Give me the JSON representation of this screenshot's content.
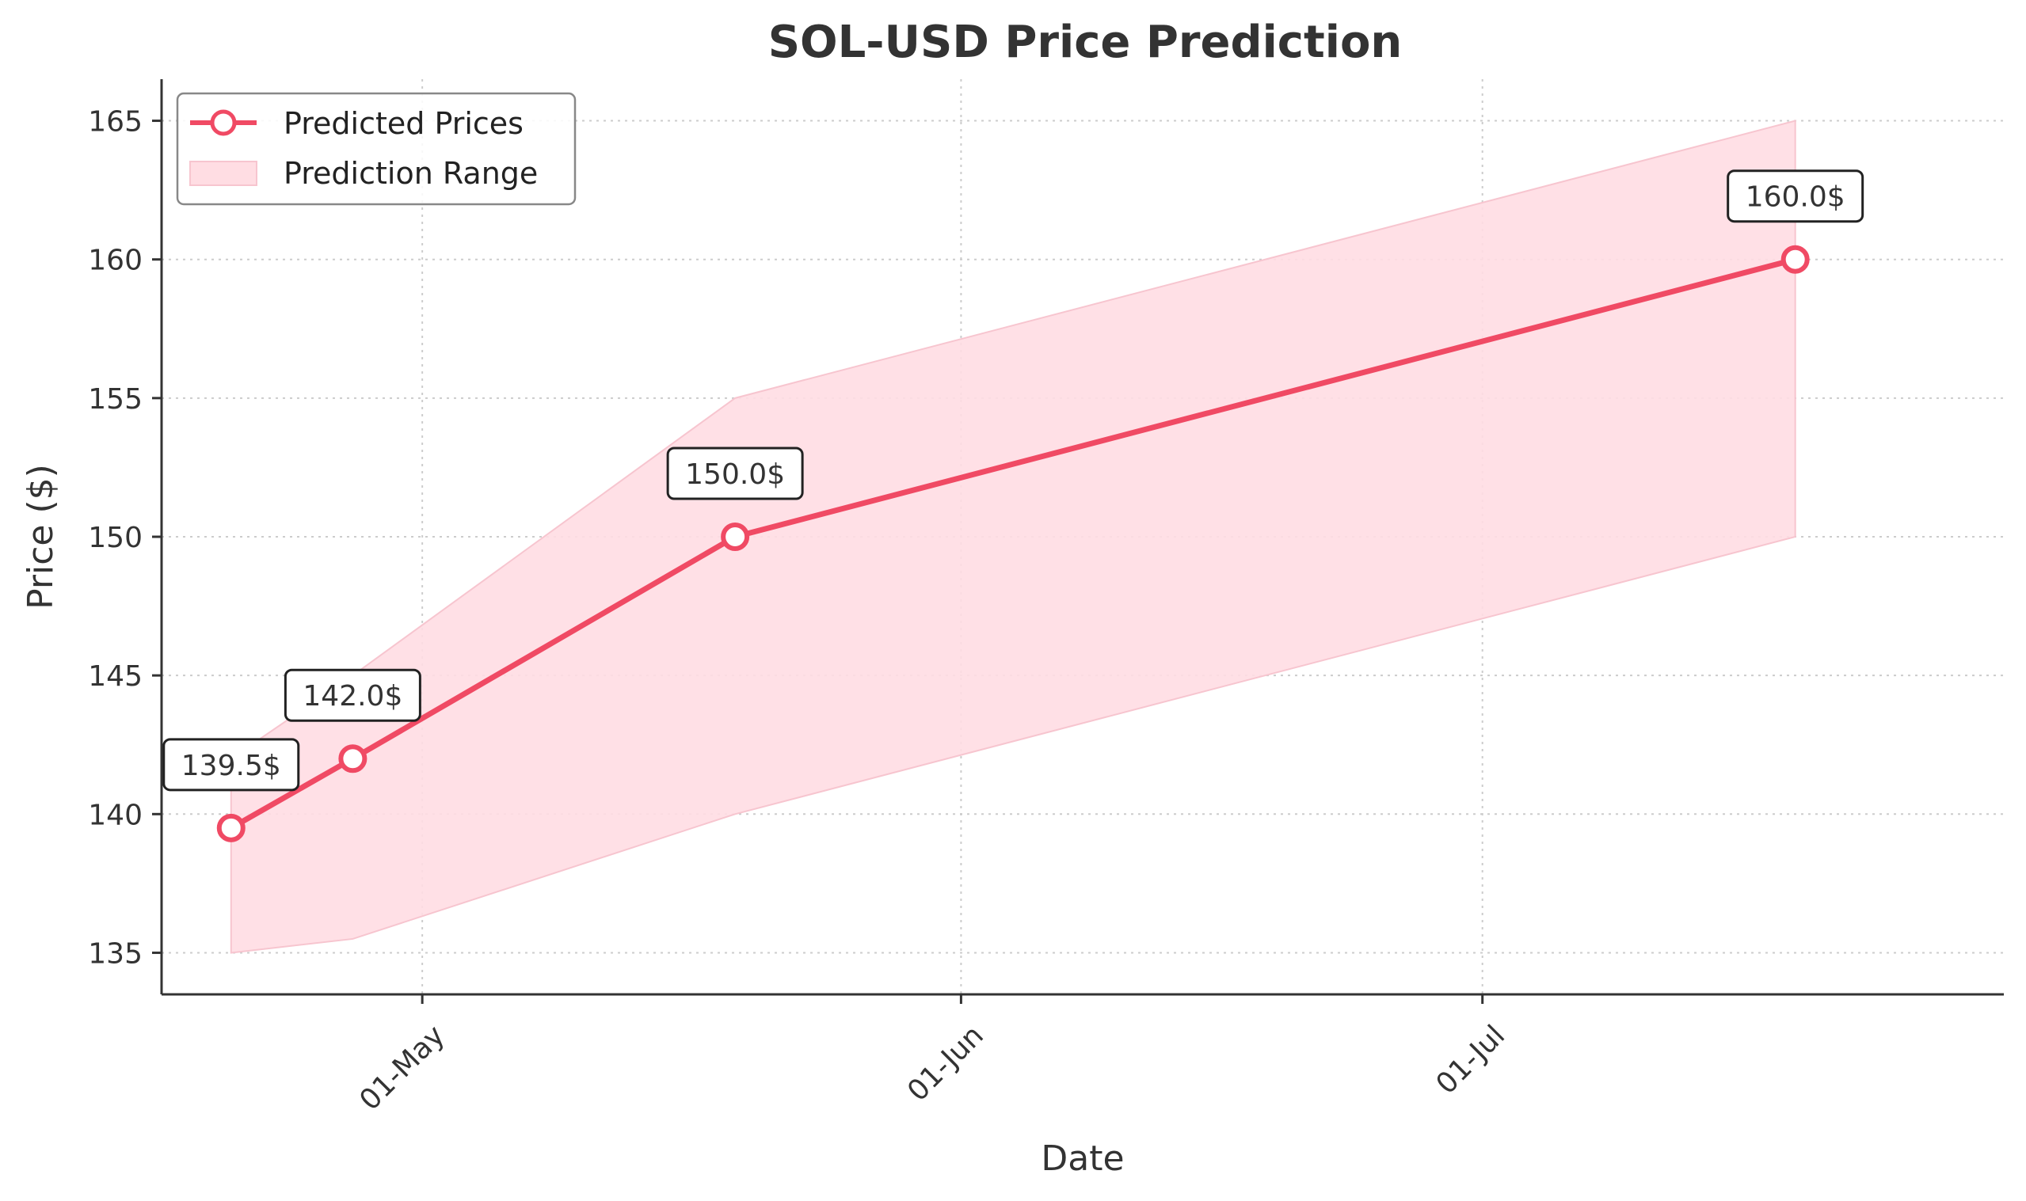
{
  "chart_data": {
    "type": "line",
    "title": "SOL-USD Price Prediction",
    "xlabel": "Date",
    "ylabel": "Price ($)",
    "ylim": [
      133.5,
      166.5
    ],
    "xlim": [
      "2025-04-16",
      "2025-07-31"
    ],
    "yticks": [
      135,
      140,
      145,
      150,
      155,
      160,
      165
    ],
    "xticks": [
      {
        "date": "2025-05-01",
        "label": "01-May"
      },
      {
        "date": "2025-06-01",
        "label": "01-Jun"
      },
      {
        "date": "2025-07-01",
        "label": "01-Jul"
      }
    ],
    "grid": true,
    "legend_position": "top-left",
    "series": [
      {
        "name": "Predicted Prices",
        "color": "#f04a64",
        "points": [
          {
            "x": "2025-04-20",
            "y": 139.5,
            "label": "139.5$"
          },
          {
            "x": "2025-04-27",
            "y": 142.0,
            "label": "142.0$"
          },
          {
            "x": "2025-05-19",
            "y": 150.0,
            "label": "150.0$"
          },
          {
            "x": "2025-07-19",
            "y": 160.0,
            "label": "160.0$"
          }
        ]
      }
    ],
    "range": {
      "name": "Prediction Range",
      "color": "#ffdde3",
      "points": [
        {
          "x": "2025-04-20",
          "low": 135.0,
          "high": 142.0
        },
        {
          "x": "2025-04-27",
          "low": 135.5,
          "high": 145.0
        },
        {
          "x": "2025-05-19",
          "low": 140.0,
          "high": 155.0
        },
        {
          "x": "2025-07-19",
          "low": 150.0,
          "high": 165.0
        }
      ]
    }
  }
}
